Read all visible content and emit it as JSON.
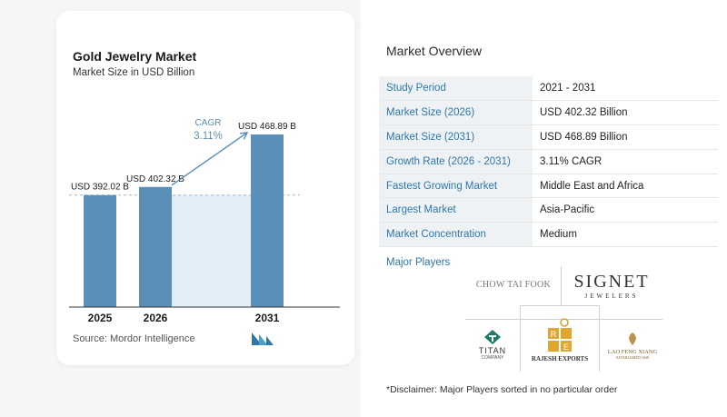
{
  "chart_data": {
    "type": "bar",
    "title": "Gold Jewelry Market",
    "subtitle": "Market Size in USD Billion",
    "categories": [
      "2025",
      "2026",
      "2031"
    ],
    "values": [
      392.02,
      402.32,
      468.89
    ],
    "value_labels": [
      "USD 392.02 B",
      "USD 402.32 B",
      "USD 468.89 B"
    ],
    "cagr_label": "CAGR",
    "cagr_value": "3.11%",
    "bar_color": "#5b8fb8",
    "highlight_color": "#e3edf5",
    "grid": false
  },
  "source": "Source:  Mordor Intelligence",
  "overview": {
    "title": "Market Overview",
    "rows": [
      {
        "key": "Study Period",
        "value": "2021 - 2031"
      },
      {
        "key": "Market Size (2026)",
        "value": "USD 402.32 Billion"
      },
      {
        "key": "Market Size (2031)",
        "value": "USD 468.89 Billion"
      },
      {
        "key": "Growth Rate (2026 - 2031)",
        "value": "3.11% CAGR"
      },
      {
        "key": "Fastest Growing Market",
        "value": "Middle East and Africa"
      },
      {
        "key": "Largest Market",
        "value": "Asia-Pacific"
      },
      {
        "key": "Market Concentration",
        "value": "Medium"
      }
    ]
  },
  "major_players": {
    "title": "Major Players",
    "logos": {
      "chow": "CHOW TAI FOOK",
      "signet_main": "SIGNET",
      "signet_sub": "JEWELERS",
      "titan": "TITAN",
      "titan_sub": "COMPANY",
      "rajesh": "RAJESH EXPORTS",
      "lfx": "LAO FENG XIANG",
      "lfx_sub": "ESTABLISHED 1848"
    }
  },
  "disclaimer": "*Disclaimer: Major Players sorted in no particular order"
}
